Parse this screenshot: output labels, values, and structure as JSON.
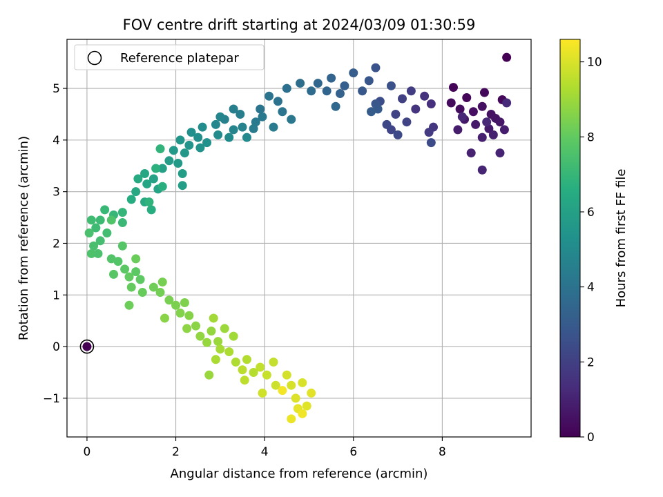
{
  "chart_data": {
    "type": "scatter",
    "title": "FOV centre drift starting at 2024/03/09 01:30:59",
    "xlabel": "Angular distance from reference (arcmin)",
    "ylabel": "Rotation from reference (arcmin)",
    "xlim": [
      -0.45,
      10.0
    ],
    "ylim": [
      -1.75,
      5.95
    ],
    "xticks": [
      0,
      2,
      4,
      6,
      8
    ],
    "yticks": [
      -1,
      0,
      1,
      2,
      3,
      4,
      5
    ],
    "xtick_labels": [
      "0",
      "2",
      "4",
      "6",
      "8"
    ],
    "ytick_labels": [
      "−1",
      "0",
      "1",
      "2",
      "3",
      "4",
      "5"
    ],
    "grid": true,
    "legend": {
      "position": "top-left",
      "entries": [
        "Reference platepar"
      ]
    },
    "reference_point": {
      "x": 0,
      "y": 0
    },
    "colorbar": {
      "label": "Hours from first FF file",
      "range": [
        0,
        10.6
      ],
      "ticks": [
        0,
        2,
        4,
        6,
        8,
        10
      ],
      "tick_labels": [
        "0",
        "2",
        "4",
        "6",
        "8",
        "10"
      ],
      "colormap": "viridis",
      "stops": [
        "#440154",
        "#472d7b",
        "#3b528b",
        "#2c728e",
        "#21918c",
        "#28ae80",
        "#5ec962",
        "#addc30",
        "#fde725"
      ]
    },
    "points": [
      [
        9.45,
        5.6,
        0.0
      ],
      [
        8.25,
        5.02,
        0.1
      ],
      [
        8.55,
        4.82,
        0.15
      ],
      [
        8.95,
        4.92,
        0.2
      ],
      [
        9.35,
        4.78,
        0.25
      ],
      [
        8.2,
        4.72,
        0.3
      ],
      [
        8.4,
        4.6,
        0.35
      ],
      [
        8.7,
        4.55,
        0.4
      ],
      [
        8.9,
        4.65,
        0.45
      ],
      [
        9.1,
        4.5,
        0.5
      ],
      [
        9.2,
        4.42,
        0.55
      ],
      [
        9.3,
        4.35,
        0.6
      ],
      [
        8.5,
        4.4,
        0.65
      ],
      [
        8.75,
        4.3,
        0.7
      ],
      [
        9.05,
        4.22,
        0.75
      ],
      [
        9.4,
        4.2,
        0.8
      ],
      [
        8.35,
        4.2,
        0.85
      ],
      [
        8.9,
        4.05,
        0.9
      ],
      [
        9.15,
        4.1,
        0.95
      ],
      [
        8.65,
        3.75,
        1.0
      ],
      [
        9.3,
        3.75,
        1.05
      ],
      [
        8.9,
        3.42,
        1.1
      ],
      [
        8.45,
        4.45,
        1.15
      ],
      [
        9.0,
        4.35,
        1.2
      ],
      [
        9.45,
        4.72,
        1.25
      ],
      [
        7.75,
        4.7,
        1.4
      ],
      [
        7.6,
        4.85,
        1.5
      ],
      [
        7.4,
        4.6,
        1.6
      ],
      [
        7.8,
        4.25,
        1.7
      ],
      [
        7.7,
        4.15,
        1.8
      ],
      [
        7.3,
        4.95,
        1.9
      ],
      [
        7.1,
        4.8,
        2.0
      ],
      [
        6.95,
        4.5,
        2.1
      ],
      [
        7.2,
        4.35,
        2.15
      ],
      [
        6.85,
        4.2,
        2.2
      ],
      [
        6.75,
        4.3,
        2.3
      ],
      [
        7.0,
        4.1,
        2.35
      ],
      [
        7.75,
        3.95,
        2.45
      ],
      [
        6.6,
        4.75,
        2.5
      ],
      [
        6.85,
        5.05,
        2.6
      ],
      [
        6.5,
        5.4,
        2.7
      ],
      [
        6.35,
        5.15,
        2.8
      ],
      [
        6.5,
        4.7,
        2.85
      ],
      [
        6.2,
        4.95,
        2.9
      ],
      [
        6.55,
        4.6,
        3.0
      ],
      [
        6.4,
        4.55,
        3.05
      ],
      [
        6.0,
        5.3,
        3.1
      ],
      [
        5.8,
        5.05,
        3.2
      ],
      [
        5.7,
        4.9,
        3.3
      ],
      [
        5.5,
        5.2,
        3.4
      ],
      [
        5.4,
        4.95,
        3.45
      ],
      [
        5.2,
        5.1,
        3.5
      ],
      [
        5.6,
        4.65,
        3.6
      ],
      [
        5.05,
        4.95,
        3.7
      ],
      [
        4.8,
        5.1,
        3.75
      ],
      [
        4.5,
        5.0,
        3.85
      ],
      [
        4.3,
        4.75,
        3.95
      ],
      [
        4.1,
        4.85,
        4.0
      ],
      [
        3.9,
        4.6,
        4.05
      ],
      [
        4.4,
        4.55,
        4.1
      ],
      [
        4.6,
        4.4,
        4.2
      ],
      [
        3.95,
        4.45,
        4.25
      ],
      [
        3.8,
        4.35,
        4.3
      ],
      [
        4.2,
        4.25,
        4.35
      ],
      [
        3.75,
        4.22,
        4.4
      ],
      [
        3.45,
        4.5,
        4.5
      ],
      [
        3.3,
        4.6,
        4.55
      ],
      [
        3.1,
        4.4,
        4.6
      ],
      [
        3.5,
        4.25,
        4.7
      ],
      [
        3.3,
        4.2,
        4.75
      ],
      [
        3.0,
        4.45,
        4.8
      ],
      [
        2.9,
        4.3,
        4.85
      ],
      [
        3.6,
        4.05,
        4.9
      ],
      [
        3.2,
        4.05,
        5.0
      ],
      [
        2.95,
        4.1,
        5.05
      ],
      [
        2.6,
        4.25,
        5.1
      ],
      [
        2.5,
        4.05,
        5.2
      ],
      [
        2.35,
        4.15,
        5.25
      ],
      [
        2.7,
        3.95,
        5.3
      ],
      [
        2.55,
        3.85,
        5.4
      ],
      [
        2.3,
        3.9,
        5.45
      ],
      [
        2.1,
        4.0,
        5.5
      ],
      [
        2.2,
        3.75,
        5.6
      ],
      [
        1.95,
        3.8,
        5.65
      ],
      [
        2.05,
        3.55,
        5.7
      ],
      [
        1.85,
        3.6,
        5.8
      ],
      [
        2.15,
        3.35,
        5.85
      ],
      [
        2.15,
        3.12,
        5.9
      ],
      [
        1.7,
        3.45,
        6.0
      ],
      [
        1.5,
        3.25,
        6.05
      ],
      [
        1.6,
        3.05,
        6.1
      ],
      [
        1.35,
        3.15,
        6.2
      ],
      [
        1.3,
        3.35,
        6.25
      ],
      [
        1.1,
        3.0,
        6.35
      ],
      [
        1.3,
        2.8,
        6.4
      ],
      [
        1.15,
        3.25,
        6.45
      ],
      [
        1.0,
        2.85,
        6.5
      ],
      [
        1.45,
        2.65,
        6.6
      ],
      [
        1.7,
        3.1,
        6.65
      ],
      [
        1.55,
        3.45,
        6.7
      ],
      [
        1.4,
        2.8,
        6.8
      ],
      [
        1.65,
        3.83,
        6.85
      ],
      [
        0.8,
        2.6,
        6.95
      ],
      [
        0.6,
        2.55,
        7.0
      ],
      [
        0.4,
        2.65,
        7.05
      ],
      [
        0.8,
        2.4,
        7.1
      ],
      [
        0.3,
        2.45,
        7.15
      ],
      [
        0.2,
        2.3,
        7.2
      ],
      [
        0.1,
        2.45,
        7.25
      ],
      [
        0.45,
        2.2,
        7.3
      ],
      [
        0.3,
        2.05,
        7.35
      ],
      [
        0.15,
        1.95,
        7.4
      ],
      [
        0.05,
        2.2,
        7.45
      ],
      [
        0.25,
        1.8,
        7.5
      ],
      [
        0.1,
        1.8,
        7.55
      ],
      [
        0.55,
        2.45,
        7.6
      ],
      [
        0.55,
        1.7,
        7.65
      ],
      [
        0.7,
        1.65,
        7.7
      ],
      [
        0.8,
        1.95,
        7.75
      ],
      [
        0.6,
        1.4,
        7.8
      ],
      [
        0.85,
        1.5,
        7.85
      ],
      [
        1.1,
        1.45,
        7.9
      ],
      [
        1.2,
        1.3,
        7.95
      ],
      [
        0.95,
        1.35,
        8.0
      ],
      [
        1.0,
        1.15,
        8.05
      ],
      [
        1.25,
        1.05,
        8.1
      ],
      [
        1.1,
        1.7,
        8.15
      ],
      [
        0.95,
        0.8,
        8.2
      ],
      [
        1.5,
        1.15,
        8.25
      ],
      [
        1.65,
        1.05,
        8.3
      ],
      [
        1.7,
        1.25,
        8.35
      ],
      [
        1.85,
        0.9,
        8.4
      ],
      [
        2.0,
        0.8,
        8.45
      ],
      [
        2.2,
        0.85,
        8.5
      ],
      [
        2.1,
        0.65,
        8.55
      ],
      [
        2.3,
        0.6,
        8.6
      ],
      [
        1.75,
        0.55,
        8.65
      ],
      [
        2.45,
        0.4,
        8.7
      ],
      [
        2.25,
        0.35,
        8.75
      ],
      [
        2.55,
        0.2,
        8.8
      ],
      [
        2.8,
        0.3,
        8.85
      ],
      [
        2.7,
        0.08,
        8.9
      ],
      [
        2.95,
        0.1,
        8.95
      ],
      [
        3.1,
        0.35,
        9.0
      ],
      [
        3.3,
        0.2,
        9.05
      ],
      [
        2.85,
        0.55,
        9.1
      ],
      [
        3.0,
        -0.05,
        9.15
      ],
      [
        2.9,
        -0.25,
        9.2
      ],
      [
        3.2,
        -0.1,
        9.25
      ],
      [
        3.35,
        -0.3,
        9.3
      ],
      [
        3.6,
        -0.25,
        9.35
      ],
      [
        3.75,
        -0.5,
        9.4
      ],
      [
        3.5,
        -0.45,
        9.5
      ],
      [
        3.55,
        -0.65,
        9.55
      ],
      [
        3.9,
        -0.4,
        9.6
      ],
      [
        4.2,
        -0.3,
        9.65
      ],
      [
        4.05,
        -0.55,
        9.7
      ],
      [
        4.25,
        -0.75,
        9.8
      ],
      [
        3.95,
        -0.9,
        9.85
      ],
      [
        4.5,
        -0.55,
        9.9
      ],
      [
        4.6,
        -0.75,
        9.95
      ],
      [
        4.85,
        -0.7,
        10.0
      ],
      [
        4.7,
        -1.0,
        10.05
      ],
      [
        4.95,
        -1.15,
        10.1
      ],
      [
        5.05,
        -0.9,
        10.15
      ],
      [
        4.75,
        -1.2,
        10.2
      ],
      [
        4.6,
        -1.4,
        10.3
      ],
      [
        4.85,
        -1.3,
        10.4
      ],
      [
        4.4,
        -0.85,
        10.45
      ],
      [
        2.75,
        -0.55,
        8.95
      ]
    ]
  }
}
